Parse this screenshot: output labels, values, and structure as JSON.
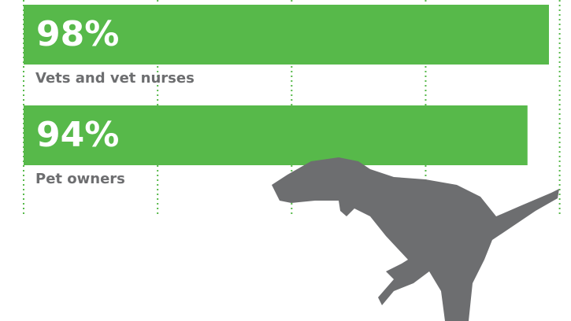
{
  "chart_data": {
    "type": "bar",
    "orientation": "horizontal",
    "categories": [
      "Vets and vet nurses",
      "Pet owners"
    ],
    "values": [
      98,
      94
    ],
    "value_labels": [
      "98%",
      "94%"
    ],
    "color": "#57b94a",
    "xlim": [
      0,
      100
    ],
    "xticks": [
      0,
      25,
      50,
      75,
      100
    ],
    "grid": true
  }
}
